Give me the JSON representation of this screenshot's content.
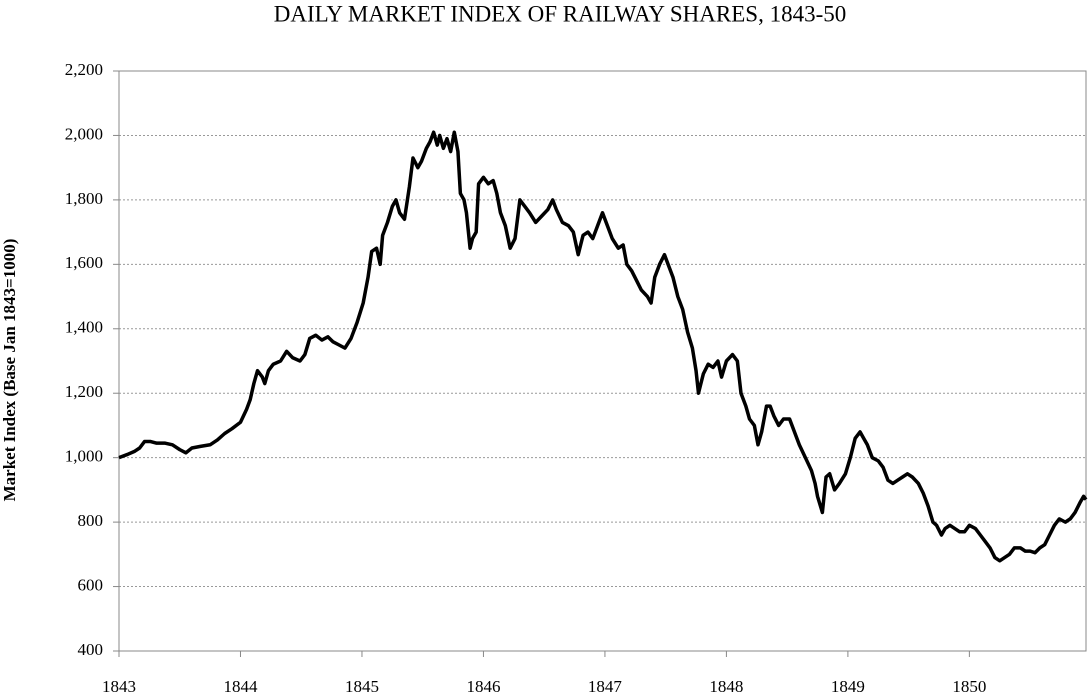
{
  "chart_data": {
    "type": "line",
    "title": "DAILY MARKET INDEX OF RAILWAY SHARES, 1843-50",
    "y_label": "Market Index (Base Jan 1843=1000)",
    "color": "#000000",
    "grid": true,
    "xlim": [
      1843,
      1850.96
    ],
    "xticks": [
      1843,
      1844,
      1845,
      1846,
      1847,
      1848,
      1849,
      1850
    ],
    "ylim": [
      400,
      2200
    ],
    "yticks": [
      400,
      600,
      800,
      {
        "value": 1000,
        "label": "1,000"
      },
      {
        "value": 1200,
        "label": "1,200"
      },
      {
        "value": 1400,
        "label": "1,400"
      },
      {
        "value": 1600,
        "label": "1,600"
      },
      {
        "value": 1800,
        "label": "1,800"
      },
      {
        "value": 2000,
        "label": "2,000"
      },
      {
        "value": 2200,
        "label": "2,200"
      }
    ],
    "x": [
      1843,
      1843.07,
      1843.13,
      1843.17,
      1843.21,
      1843.26,
      1843.31,
      1843.38,
      1843.44,
      1843.5,
      1843.55,
      1843.6,
      1843.67,
      1843.75,
      1843.81,
      1843.87,
      1843.93,
      1844,
      1844.05,
      1844.08,
      1844.11,
      1844.14,
      1844.18,
      1844.2,
      1844.23,
      1844.27,
      1844.33,
      1844.38,
      1844.43,
      1844.49,
      1844.53,
      1844.57,
      1844.62,
      1844.67,
      1844.72,
      1844.76,
      1844.81,
      1844.86,
      1844.91,
      1844.96,
      1845.01,
      1845.05,
      1845.08,
      1845.12,
      1845.15,
      1845.17,
      1845.21,
      1845.25,
      1845.28,
      1845.31,
      1845.35,
      1845.39,
      1845.42,
      1845.46,
      1845.49,
      1845.53,
      1845.56,
      1845.59,
      1845.62,
      1845.64,
      1845.67,
      1845.7,
      1845.73,
      1845.76,
      1845.79,
      1845.81,
      1845.84,
      1845.86,
      1845.89,
      1845.91,
      1845.94,
      1845.96,
      1846,
      1846.04,
      1846.08,
      1846.11,
      1846.14,
      1846.18,
      1846.22,
      1846.26,
      1846.3,
      1846.34,
      1846.38,
      1846.43,
      1846.48,
      1846.53,
      1846.57,
      1846.6,
      1846.65,
      1846.7,
      1846.74,
      1846.78,
      1846.82,
      1846.86,
      1846.9,
      1846.94,
      1846.98,
      1847.02,
      1847.06,
      1847.11,
      1847.15,
      1847.18,
      1847.22,
      1847.26,
      1847.3,
      1847.35,
      1847.38,
      1847.41,
      1847.45,
      1847.49,
      1847.52,
      1847.56,
      1847.6,
      1847.64,
      1847.68,
      1847.72,
      1847.75,
      1847.77,
      1847.81,
      1847.85,
      1847.89,
      1847.93,
      1847.96,
      1848,
      1848.05,
      1848.09,
      1848.12,
      1848.16,
      1848.19,
      1848.23,
      1848.26,
      1848.29,
      1848.33,
      1848.36,
      1848.39,
      1848.43,
      1848.47,
      1848.52,
      1848.56,
      1848.6,
      1848.65,
      1848.7,
      1848.73,
      1848.75,
      1848.79,
      1848.82,
      1848.85,
      1848.89,
      1848.93,
      1848.98,
      1849.02,
      1849.06,
      1849.1,
      1849.13,
      1849.16,
      1849.2,
      1849.25,
      1849.29,
      1849.33,
      1849.37,
      1849.41,
      1849.45,
      1849.49,
      1849.53,
      1849.58,
      1849.62,
      1849.66,
      1849.7,
      1849.73,
      1849.77,
      1849.8,
      1849.84,
      1849.88,
      1849.92,
      1849.96,
      1850,
      1850.05,
      1850.09,
      1850.13,
      1850.17,
      1850.21,
      1850.25,
      1850.29,
      1850.33,
      1850.37,
      1850.42,
      1850.46,
      1850.5,
      1850.54,
      1850.58,
      1850.62,
      1850.66,
      1850.7,
      1850.74,
      1850.79,
      1850.83,
      1850.87,
      1850.91,
      1850.94,
      1850.96
    ],
    "values": [
      1000,
      1010,
      1020,
      1030,
      1050,
      1050,
      1045,
      1045,
      1040,
      1025,
      1015,
      1030,
      1035,
      1040,
      1055,
      1075,
      1090,
      1110,
      1150,
      1180,
      1230,
      1270,
      1250,
      1230,
      1270,
      1290,
      1300,
      1330,
      1310,
      1300,
      1320,
      1370,
      1380,
      1365,
      1375,
      1360,
      1350,
      1340,
      1370,
      1420,
      1480,
      1560,
      1640,
      1650,
      1600,
      1690,
      1730,
      1780,
      1800,
      1760,
      1740,
      1840,
      1930,
      1900,
      1920,
      1960,
      1980,
      2010,
      1970,
      2000,
      1960,
      1990,
      1950,
      2010,
      1950,
      1820,
      1800,
      1760,
      1650,
      1680,
      1700,
      1850,
      1870,
      1850,
      1860,
      1820,
      1760,
      1720,
      1650,
      1680,
      1800,
      1780,
      1760,
      1730,
      1750,
      1770,
      1800,
      1770,
      1730,
      1720,
      1700,
      1630,
      1690,
      1700,
      1680,
      1720,
      1760,
      1720,
      1680,
      1650,
      1660,
      1600,
      1580,
      1550,
      1520,
      1500,
      1480,
      1560,
      1600,
      1630,
      1600,
      1560,
      1500,
      1460,
      1390,
      1340,
      1270,
      1200,
      1260,
      1290,
      1280,
      1300,
      1250,
      1300,
      1320,
      1300,
      1200,
      1160,
      1120,
      1100,
      1040,
      1080,
      1160,
      1160,
      1130,
      1100,
      1120,
      1120,
      1080,
      1040,
      1000,
      960,
      920,
      880,
      830,
      940,
      950,
      900,
      920,
      950,
      1000,
      1060,
      1080,
      1060,
      1040,
      1000,
      990,
      970,
      930,
      920,
      930,
      940,
      950,
      940,
      920,
      890,
      850,
      800,
      790,
      760,
      780,
      790,
      780,
      770,
      770,
      790,
      780,
      760,
      740,
      720,
      690,
      680,
      690,
      700,
      720,
      720,
      710,
      710,
      705,
      720,
      730,
      760,
      790,
      810,
      800,
      810,
      830,
      860,
      880,
      870
    ]
  }
}
